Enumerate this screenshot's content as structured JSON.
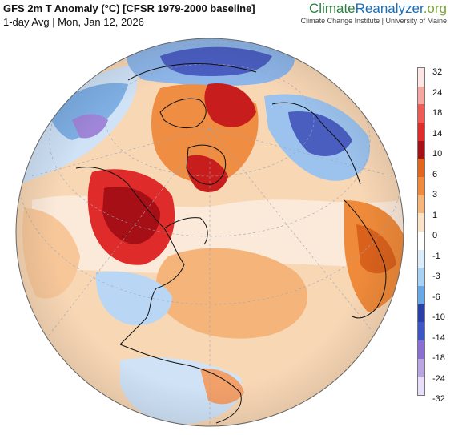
{
  "header": {
    "title": "GFS 2m T Anomaly (°C) [CFSR 1979-2000 baseline]",
    "subtitle": "1-day Avg | Mon, Jan 12, 2026"
  },
  "brand": {
    "part1": "Climate",
    "part2": "Reanalyzer",
    "part3": ".org",
    "affiliation": "Climate Change Institute | University of Maine"
  },
  "legend": {
    "ticks": [
      "32",
      "24",
      "18",
      "14",
      "10",
      "6",
      "3",
      "1",
      "0",
      "-1",
      "-3",
      "-6",
      "-10",
      "-14",
      "-18",
      "-24",
      "-32"
    ],
    "colors": [
      "#fbe5e5",
      "#f4a6a0",
      "#ee5b55",
      "#e02b2b",
      "#a50f15",
      "#e2661b",
      "#f08a3c",
      "#f6b57a",
      "#fce3c7",
      "#ffffff",
      "#dcecf8",
      "#a9d1f1",
      "#6aa9e6",
      "#2b3fa8",
      "#3d55c5",
      "#8a6fd0",
      "#b9a5e0",
      "#e8defa"
    ]
  },
  "map": {
    "projection": "orthographic",
    "center": "North Pole / North Atlantic",
    "palette": {
      "ocean_warm": "#f7c79a",
      "ocean_neutral": "#fbe8d6",
      "cold_light": "#cfe2f6",
      "cold_mid": "#8cbbe8",
      "cold_deep": "#3b4fb5",
      "warm_mid": "#ef8d42",
      "warm_hot": "#c81d1d",
      "warm_extreme": "#9a0d12"
    }
  }
}
